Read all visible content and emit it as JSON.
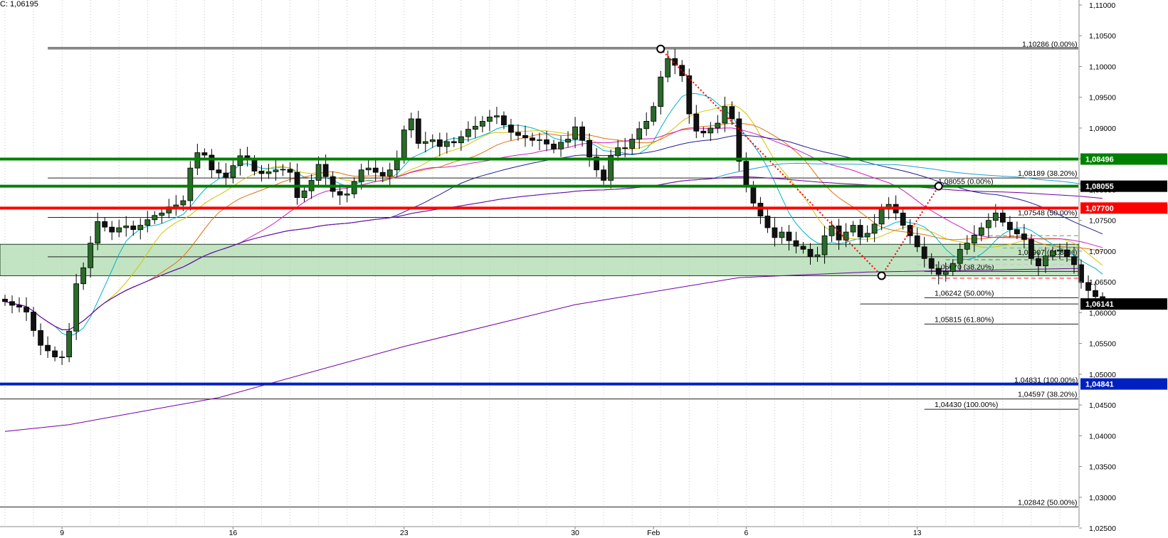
{
  "header": {
    "close_readout": "C: 1,06195"
  },
  "chart_data": {
    "type": "candlestick",
    "instrument": "",
    "ylim": [
      1.025,
      1.11
    ],
    "y_ticks": [
      "1,11000",
      "1,10500",
      "1,10000",
      "1,09500",
      "1,09000",
      "1,08500",
      "1,08000",
      "1,07500",
      "1,07000",
      "1,06500",
      "1,06000",
      "1,05500",
      "1,05000",
      "1,04500",
      "1,04000",
      "1,03500",
      "1,03000",
      "1,02500"
    ],
    "y_tick_values": [
      1.11,
      1.105,
      1.1,
      1.095,
      1.09,
      1.085,
      1.08,
      1.075,
      1.07,
      1.065,
      1.06,
      1.055,
      1.05,
      1.045,
      1.04,
      1.035,
      1.03,
      1.025
    ],
    "x_labels": [
      "9",
      "16",
      "23",
      "30",
      "Feb",
      "6",
      "13"
    ],
    "x_label_index": [
      8,
      32,
      56,
      80,
      91,
      104,
      128
    ],
    "bars_total": 151,
    "grid": true,
    "close_series": [
      1.0618,
      1.0612,
      1.0609,
      1.0601,
      1.0571,
      1.0547,
      1.0538,
      1.0528,
      1.0528,
      1.057,
      1.0647,
      1.0673,
      1.0713,
      1.0748,
      1.0739,
      1.0731,
      1.0738,
      1.0741,
      1.0735,
      1.0742,
      1.0751,
      1.0758,
      1.0762,
      1.0772,
      1.0775,
      1.0782,
      1.0835,
      1.086,
      1.0856,
      1.0832,
      1.0827,
      1.082,
      1.0839,
      1.0855,
      1.0849,
      1.083,
      1.0826,
      1.0829,
      1.0832,
      1.0833,
      1.0828,
      1.0787,
      1.0798,
      1.0815,
      1.0841,
      1.0821,
      1.0797,
      1.0791,
      1.0793,
      1.0813,
      1.0832,
      1.0835,
      1.0828,
      1.0822,
      1.0832,
      1.0849,
      1.0897,
      1.0915,
      1.0875,
      1.0878,
      1.0881,
      1.087,
      1.0878,
      1.0876,
      1.0886,
      1.0898,
      1.0903,
      1.0911,
      1.0918,
      1.092,
      1.0905,
      1.0893,
      1.0888,
      1.0884,
      1.088,
      1.0881,
      1.0874,
      1.0866,
      1.0877,
      1.0882,
      1.0902,
      1.088,
      1.0853,
      1.0832,
      1.0815,
      1.0855,
      1.0868,
      1.0867,
      1.0882,
      1.0899,
      1.0911,
      1.0935,
      1.0983,
      1.1013,
      1.1002,
      1.0985,
      1.0923,
      1.0895,
      1.0892,
      1.09,
      1.0908,
      1.0935,
      1.0915,
      1.0846,
      1.0807,
      1.0778,
      1.0757,
      1.0738,
      1.0722,
      1.0731,
      1.0717,
      1.0708,
      1.0703,
      1.0691,
      1.0694,
      1.0725,
      1.0741,
      1.0718,
      1.0731,
      1.0742,
      1.0723,
      1.0729,
      1.0744,
      1.0768,
      1.0776,
      1.0762,
      1.0742,
      1.0725,
      1.0707,
      1.0688,
      1.0672,
      1.0662,
      1.0667,
      1.068,
      1.0703,
      1.0713,
      1.0726,
      1.0738,
      1.075,
      1.0762,
      1.0747,
      1.0735,
      1.0728,
      1.0719,
      1.0688,
      1.0676,
      1.0692,
      1.07,
      1.0702,
      1.0691,
      1.0678,
      1.0649,
      1.0636,
      1.0626,
      1.0618
    ],
    "moving_averages": [
      {
        "color": "#00b3c8",
        "period": 8
      },
      {
        "color": "#d4c400",
        "period": 13
      },
      {
        "color": "#e07010",
        "period": 21
      },
      {
        "color": "#d020c0",
        "period": 34
      },
      {
        "color": "#202090",
        "period": 55
      },
      {
        "color": "#20a0d0",
        "period": 100
      },
      {
        "color": "#7000a0",
        "period": 200
      }
    ],
    "long_ma_anchor": [
      [
        0,
        1.0407
      ],
      [
        9,
        1.0418
      ],
      [
        30,
        1.0462
      ],
      [
        56,
        1.0545
      ],
      [
        80,
        1.0613
      ],
      [
        103,
        1.0657
      ],
      [
        121,
        1.0666
      ],
      [
        151,
        1.0672
      ]
    ],
    "zone": {
      "from": 1.066,
      "to": 1.07111,
      "color": "#a8d8a8"
    },
    "levels": [
      {
        "value": 1.08496,
        "color": "#008000",
        "label": "1,08496",
        "style": "thick"
      },
      {
        "value": 1.08055,
        "color": "#008000",
        "label": "1,08055",
        "style": "thick",
        "label_bg": "#000000"
      },
      {
        "value": 1.077,
        "color": "#ff0000",
        "label": "1,07700",
        "style": "thick"
      },
      {
        "value": 1.04841,
        "color": "#0020c0",
        "label": "1,04841",
        "style": "thick"
      },
      {
        "value": 1.06141,
        "color": "#000000",
        "label": "1,06141",
        "style": "marker",
        "label_bg": "#000000"
      }
    ],
    "fib_lines": [
      {
        "value": 1.10286,
        "text": "1,10286 (0.00%)",
        "from": 8,
        "to": 151,
        "label_at": 1436,
        "double": true
      },
      {
        "value": 1.08189,
        "text": "1,08189 (38.20%)",
        "from": 8,
        "to": 151,
        "label_at": 1430
      },
      {
        "value": 1.08055,
        "text": "1,08055 (0.00%)",
        "from": 131,
        "to": 151,
        "label_at": 1318
      },
      {
        "value": 1.07548,
        "text": "1,07548 (50.00%)",
        "from": 8,
        "to": 151,
        "label_at": 1430
      },
      {
        "value": 1.06907,
        "text": "1,06907 (61.80%)",
        "from": 8,
        "to": 151,
        "label_at": 1430
      },
      {
        "value": 1.0667,
        "text": "1,06670 (38.20%)",
        "from": 131,
        "to": 151,
        "label_at": 1313
      },
      {
        "value": 1.06242,
        "text": "1,06242 (50.00%)",
        "from": 131,
        "to": 151,
        "label_at": 1313
      },
      {
        "value": 1.06141,
        "text": "",
        "from": 122,
        "to": 151,
        "label_at": 0
      },
      {
        "value": 1.05815,
        "text": "1,05815 (61.80%)",
        "from": 131,
        "to": 151,
        "label_at": 1313
      },
      {
        "value": 1.04831,
        "text": "1,04831 (100.00%)",
        "from": 8,
        "to": 151,
        "label_at": 1425
      },
      {
        "value": 1.04597,
        "text": "1,04597 (38.20%)",
        "from": 0,
        "to": 151,
        "label_at": 1430
      },
      {
        "value": 1.0443,
        "text": "1,04430 (100.00%)",
        "from": 131,
        "to": 151,
        "label_at": 1313
      },
      {
        "value": 1.02842,
        "text": "1,02842 (50.00%)",
        "from": 0,
        "to": 151,
        "label_at": 1430
      }
    ],
    "swing_points": [
      {
        "index": 92,
        "value": 1.10286
      },
      {
        "index": 123,
        "value": 1.066
      },
      {
        "index": 131,
        "value": 1.08055
      }
    ],
    "dotted_lines": [
      {
        "from": [
          92,
          1.10286
        ],
        "to": [
          123,
          1.066
        ],
        "color": "#ff0000"
      },
      {
        "from": [
          123,
          1.066
        ],
        "to": [
          131,
          1.08055
        ],
        "color": "#ff0000"
      }
    ],
    "dashed_short_lines": [
      {
        "value": 1.0725,
        "from": 138,
        "to": 151,
        "color": "#90c090"
      },
      {
        "value": 1.0705,
        "from": 140,
        "to": 151,
        "color": "#90c090"
      },
      {
        "value": 1.0686,
        "from": 132,
        "to": 151,
        "color": "#909090"
      },
      {
        "value": 1.0678,
        "from": 128,
        "to": 151,
        "color": "#cccccc"
      },
      {
        "value": 1.0656,
        "from": 130,
        "to": 151,
        "color": "#ff6060"
      }
    ]
  }
}
